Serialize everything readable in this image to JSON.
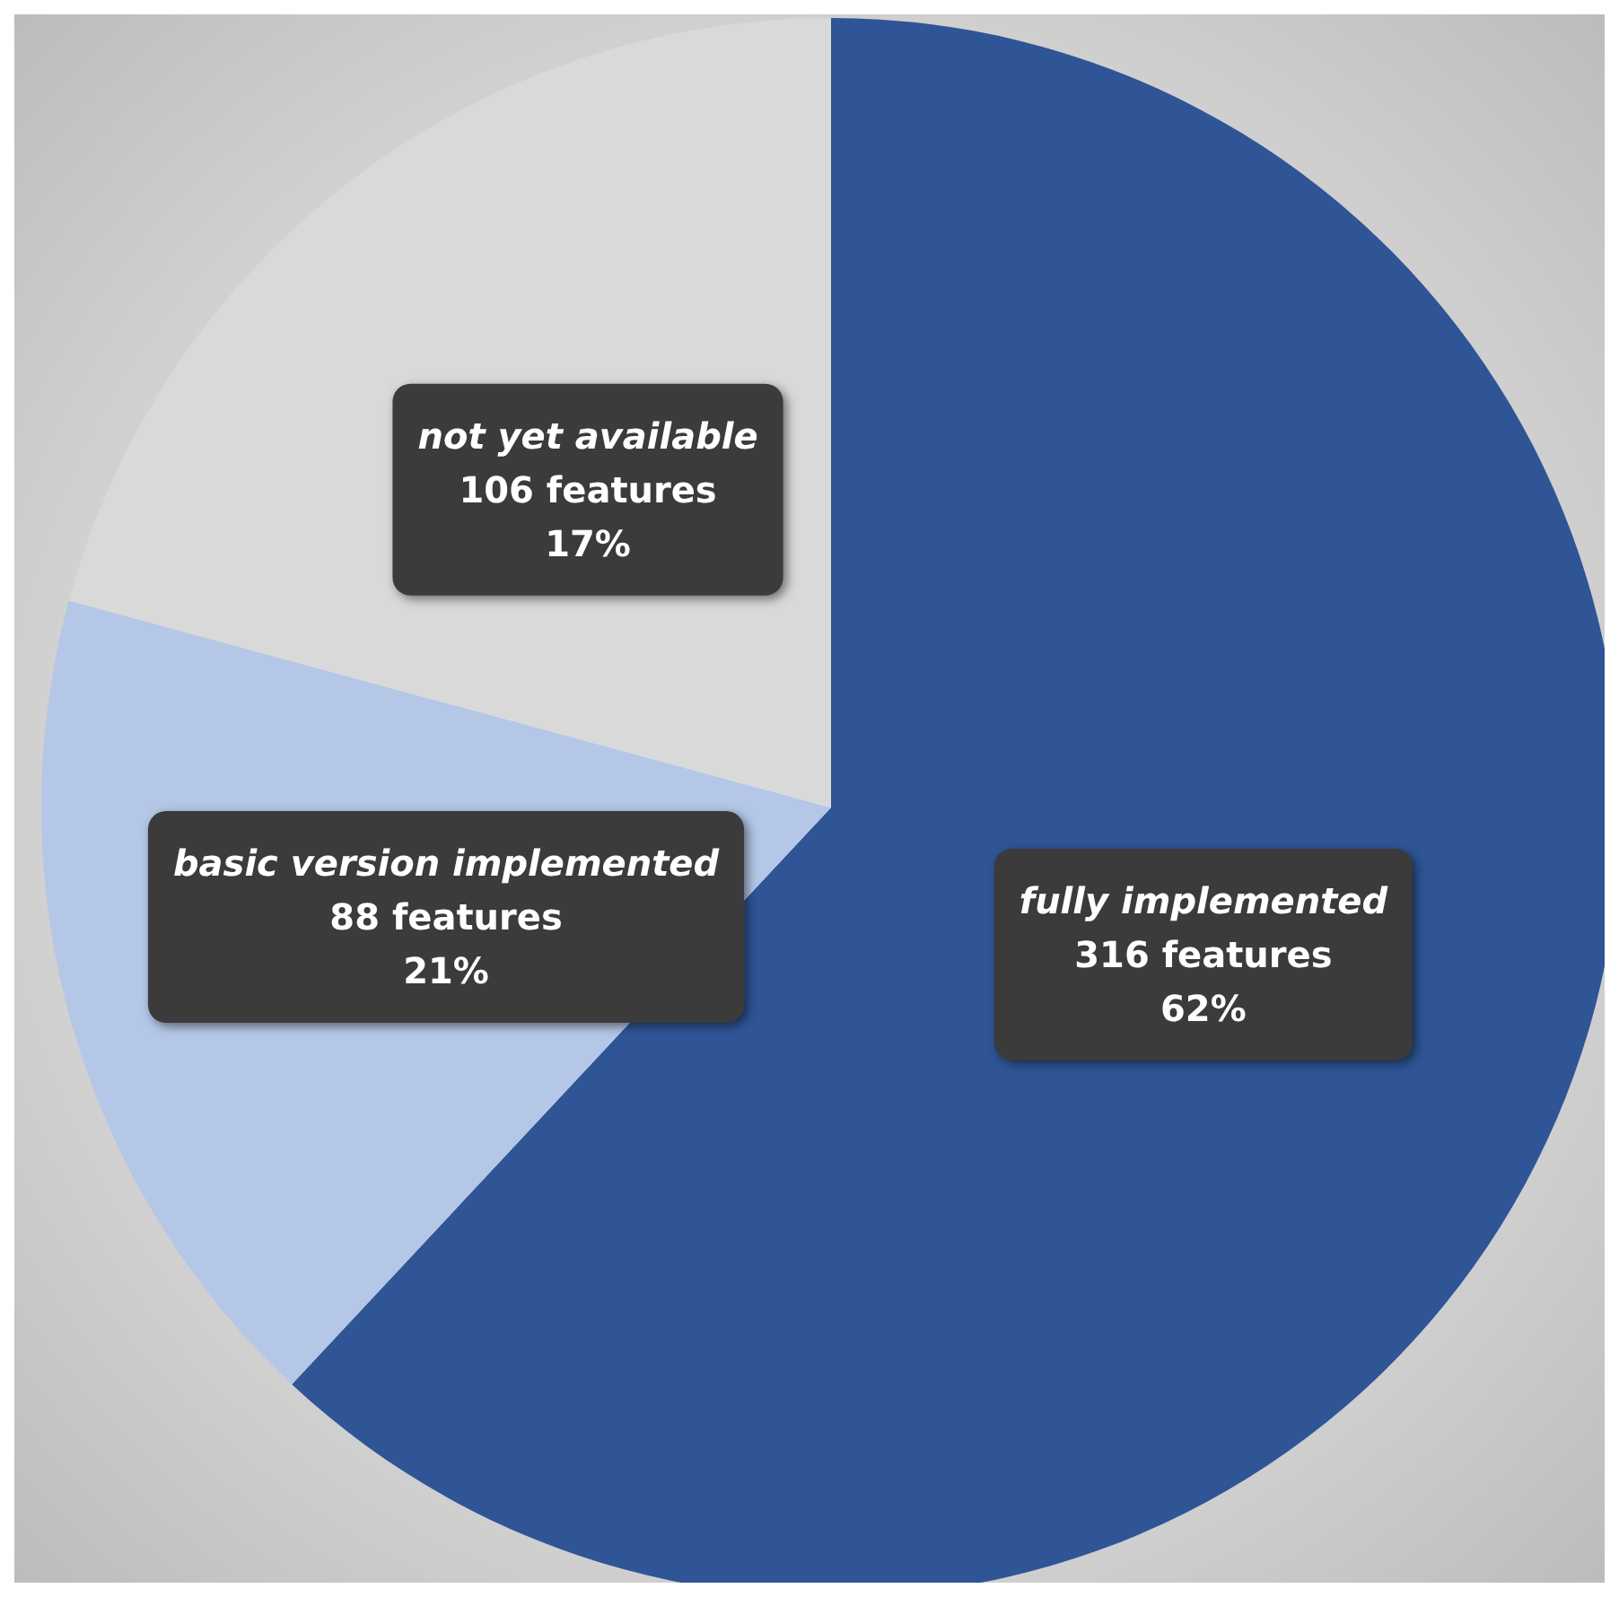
{
  "chart_data": {
    "type": "pie",
    "categories": [
      "fully implemented",
      "basic version implemented",
      "not yet available"
    ],
    "values": [
      316,
      88,
      106
    ],
    "colors": [
      "#2f5597",
      "#b4c7e7",
      "#d9d9d9"
    ],
    "value_labels": [
      "316 features\n62%",
      "88 features\n21%",
      "106 features\n17%"
    ],
    "legend": false
  }
}
